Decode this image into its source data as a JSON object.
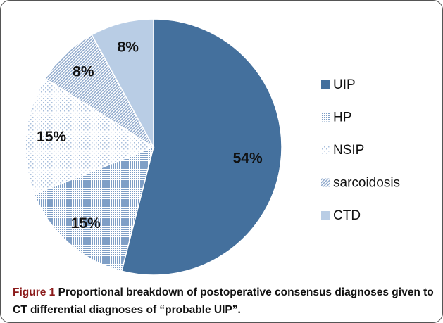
{
  "chart_data": {
    "type": "pie",
    "categories": [
      "UIP",
      "HP",
      "NSIP",
      "sarcoidosis",
      "CTD"
    ],
    "values": [
      54,
      15,
      15,
      8,
      8
    ],
    "value_labels": [
      "54%",
      "15%",
      "15%",
      "8%",
      "8%"
    ],
    "colors": [
      "#44709d",
      "#7f9fc6",
      "#a9bfdc",
      "#8fa9cc",
      "#b9cde5"
    ],
    "patterns": [
      "solid",
      "crosshatch",
      "dots",
      "diagonal",
      "solid"
    ],
    "legend": "right"
  },
  "caption": {
    "label": "Figure 1",
    "text": "Proportional breakdown of postoperative consensus diagnoses given to CT differential diagnoses of “probable UIP”."
  }
}
